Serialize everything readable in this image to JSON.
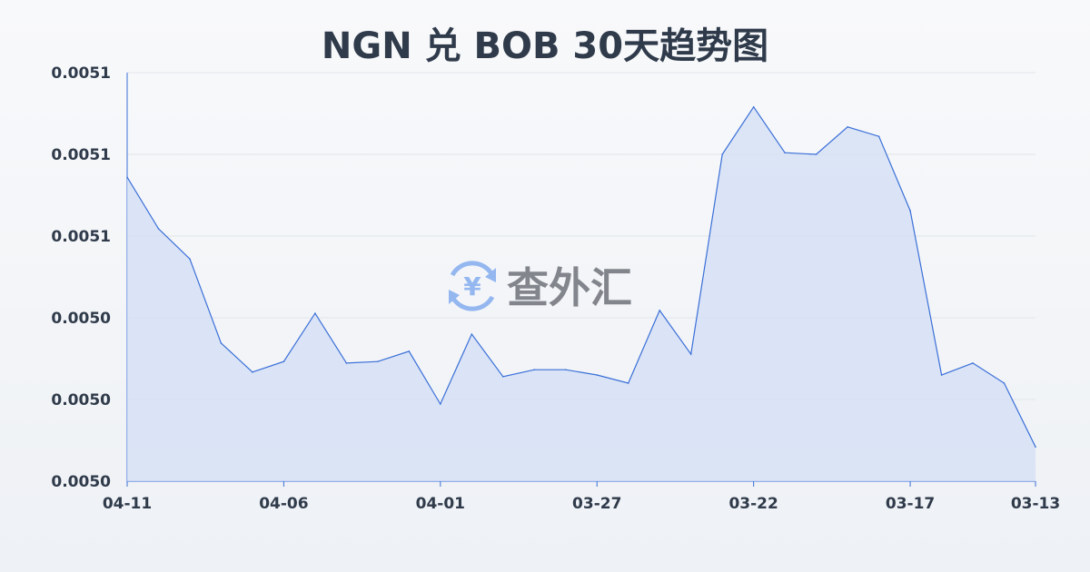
{
  "chart_data": {
    "type": "area",
    "title": "NGN 兑 BOB 30天趋势图",
    "xlabel": "",
    "ylabel": "",
    "x": [
      "04-11",
      "04-10",
      "04-09",
      "04-08",
      "04-07",
      "04-06",
      "04-05",
      "04-04",
      "04-03",
      "04-02",
      "04-01",
      "03-31",
      "03-30",
      "03-29",
      "03-28",
      "03-27",
      "03-26",
      "03-25",
      "03-24",
      "03-23",
      "03-22",
      "03-21",
      "03-20",
      "03-19",
      "03-18",
      "03-17",
      "03-16",
      "03-15",
      "03-14",
      "03-13"
    ],
    "x_tick_labels": [
      "04-11",
      "04-06",
      "04-01",
      "03-27",
      "03-22",
      "03-17",
      "03-13"
    ],
    "values": [
      0.0050744,
      0.0050618,
      0.0050544,
      0.0050338,
      0.0050267,
      0.0050293,
      0.0050411,
      0.0050289,
      0.0050293,
      0.0050318,
      0.0050189,
      0.005036,
      0.0050256,
      0.0050273,
      0.0050273,
      0.005026,
      0.005024,
      0.0050418,
      0.0050311,
      0.00508,
      0.0050916,
      0.0050804,
      0.00508,
      0.0050867,
      0.0050844,
      0.0050662,
      0.005026,
      0.0050289,
      0.005024,
      0.0050084
    ],
    "ylim": [
      0.005,
      0.0051
    ],
    "y_ticks": [
      0.0051,
      0.00508,
      0.00506,
      0.00504,
      0.00502,
      0.005
    ],
    "y_tick_labels": [
      "0.0051",
      "0.0051",
      "0.0051",
      "0.0050",
      "0.0050",
      "0.0050"
    ],
    "grid": true,
    "line_color": "#3a6fd8",
    "fill_color": "#d5e0f5"
  },
  "watermark": {
    "text": "查外汇",
    "icon": "yen-exchange-icon",
    "icon_color": "#8fb4f0",
    "text_color": "#7d8087"
  }
}
